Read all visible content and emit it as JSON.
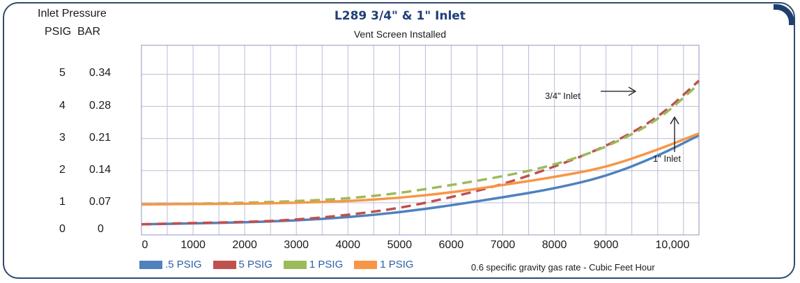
{
  "chart_data": {
    "type": "line",
    "title": "L289 3/4\" & 1\" Inlet",
    "subtitle": "Vent Screen Installed",
    "y_axis_title": "Inlet Pressure",
    "y_units": [
      "PSIG",
      "BAR"
    ],
    "y_ticks_psig": [
      "0",
      "1",
      "2",
      "3",
      "4",
      "5"
    ],
    "y_ticks_bar": [
      "0",
      "0.07",
      "0.14",
      "0.21",
      "0.28",
      "0.34"
    ],
    "x_ticks": [
      "0",
      "1000",
      "2000",
      "3000",
      "4000",
      "5000",
      "6000",
      "7000",
      "8000",
      "9000",
      "10,000"
    ],
    "xlim": [
      0,
      10800
    ],
    "ylim": [
      0,
      5.9
    ],
    "grid": true,
    "xlabel": "0.6 specific gravity gas rate - Cubic Feet Hour",
    "legend_position": "bottom",
    "annotations": [
      "3/4\" Inlet",
      "1\" Inlet"
    ],
    "series": [
      {
        "name": ".5 PSIG",
        "color": "#4f81bd",
        "dashed": false,
        "x": [
          0,
          1000,
          2000,
          3000,
          4000,
          5000,
          6000,
          7000,
          8000,
          9000,
          10000,
          10800
        ],
        "y": [
          0.33,
          0.36,
          0.39,
          0.45,
          0.55,
          0.7,
          0.92,
          1.17,
          1.44,
          1.82,
          2.45,
          3.1
        ]
      },
      {
        "name": "5 PSIG",
        "color": "#c0504d",
        "dashed": true,
        "x": [
          0,
          1000,
          2000,
          3000,
          4000,
          5000,
          6000,
          7000,
          8000,
          9000,
          10000,
          10800
        ],
        "y": [
          0.33,
          0.37,
          0.4,
          0.47,
          0.62,
          0.83,
          1.17,
          1.57,
          2.12,
          2.75,
          3.62,
          4.8
        ]
      },
      {
        "name": "1 PSIG",
        "color": "#9bbb59",
        "dashed": true,
        "x": [
          0,
          1000,
          2000,
          3000,
          4000,
          5000,
          6000,
          7000,
          8000,
          9000,
          10000,
          10800
        ],
        "y": [
          0.95,
          0.97,
          1.0,
          1.05,
          1.13,
          1.3,
          1.55,
          1.82,
          2.17,
          2.72,
          3.55,
          4.7
        ]
      },
      {
        "name": "1 PSIG",
        "color": "#f79646",
        "dashed": false,
        "x": [
          0,
          1000,
          2000,
          3000,
          4000,
          5000,
          6000,
          7000,
          8000,
          9000,
          10000,
          10800
        ],
        "y": [
          0.95,
          0.96,
          0.97,
          1.0,
          1.05,
          1.15,
          1.32,
          1.55,
          1.8,
          2.1,
          2.65,
          3.16
        ]
      }
    ]
  }
}
